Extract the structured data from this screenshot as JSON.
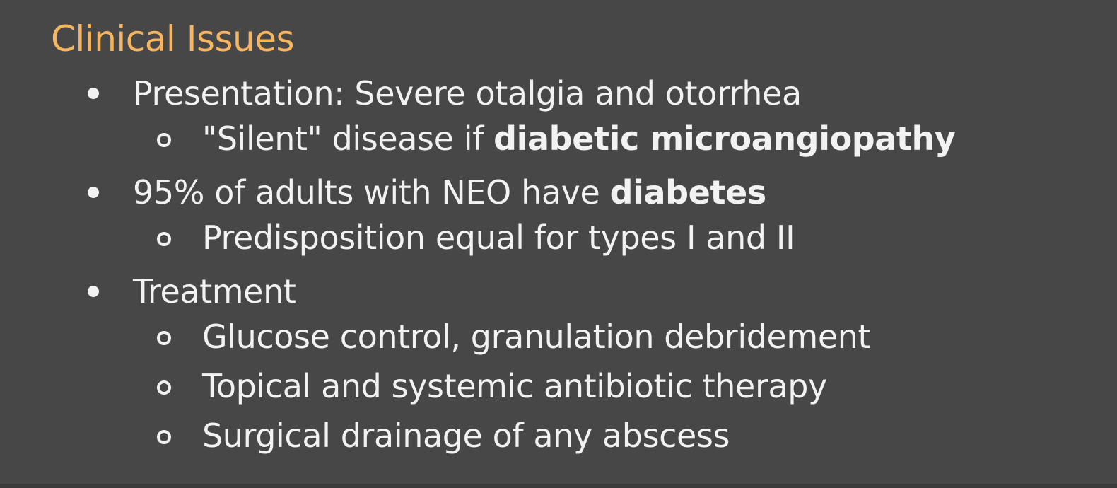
{
  "slide": {
    "title": "Clinical Issues",
    "items": [
      {
        "level": 1,
        "text": "Presentation: Severe otalgia and otorrhea",
        "bold": ""
      },
      {
        "level": 2,
        "text": "\"Silent\" disease if ",
        "bold": "diabetic microangiopathy"
      },
      {
        "level": 1,
        "text": "95% of adults with NEO have ",
        "bold": "diabetes"
      },
      {
        "level": 2,
        "text": "Predisposition equal for types I and II",
        "bold": ""
      },
      {
        "level": 1,
        "text": "Treatment",
        "bold": ""
      },
      {
        "level": 2,
        "text": "Glucose control, granulation debridement",
        "bold": ""
      },
      {
        "level": 2,
        "text": "Topical and systemic antibiotic therapy",
        "bold": ""
      },
      {
        "level": 2,
        "text": "Surgical drainage of any abscess",
        "bold": ""
      }
    ]
  },
  "colors": {
    "background": "#474747",
    "title": "#f6b55e",
    "text": "#f2f2f2"
  }
}
